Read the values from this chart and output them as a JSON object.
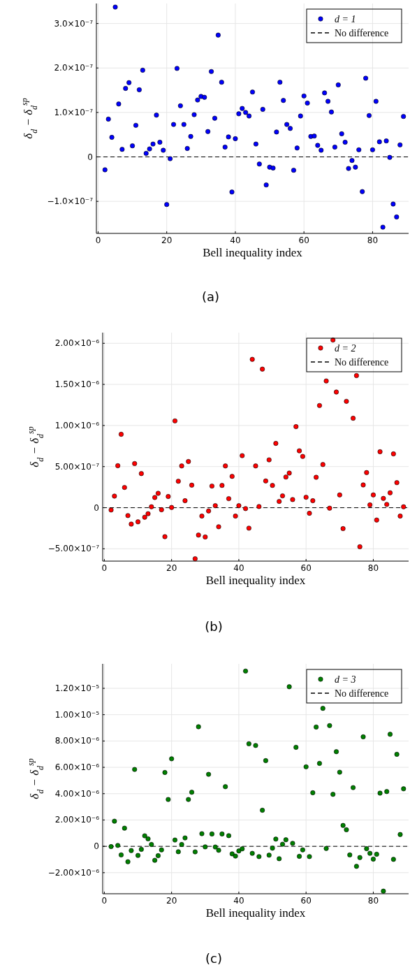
{
  "chart_data": [
    {
      "type": "scatter",
      "xlabel": "Bell inequality index",
      "ylabel": "δ$_{d}$ − δ$_{d}$$^{sp}$",
      "xlim": [
        -0.5,
        90.5
      ],
      "xticks": [
        0,
        20,
        40,
        60,
        80
      ],
      "ylim": [
        -1.72e-07,
        3.45e-07
      ],
      "yticks": [
        {
          "value": -1e-07,
          "label": "−1.0×10⁻⁷"
        },
        {
          "value": 0,
          "label": "0"
        },
        {
          "value": 1e-07,
          "label": "1.0×10⁻⁷"
        },
        {
          "value": 2e-07,
          "label": "2.0×10⁻⁷"
        },
        {
          "value": 3e-07,
          "label": "3.0×10⁻⁷"
        }
      ],
      "grid": true,
      "legend": "top right",
      "marker": "circle",
      "annotations": [
        "(a)"
      ],
      "ref_lines": [
        {
          "axis": "y",
          "value": 0,
          "label": "No difference",
          "line_style": "dashed",
          "color": "#000000"
        }
      ],
      "series": [
        {
          "name": "d = 1",
          "color": "#0000ff",
          "x": [
            2,
            3,
            4,
            5,
            6,
            7,
            8,
            9,
            10,
            11,
            12,
            13,
            14,
            15,
            16,
            17,
            18,
            19,
            20,
            21,
            22,
            23,
            24,
            25,
            26,
            27,
            28,
            29,
            30,
            31,
            32,
            33,
            34,
            35,
            36,
            37,
            38,
            39,
            40,
            41,
            42,
            43,
            44,
            45,
            46,
            47,
            48,
            49,
            50,
            51,
            52,
            53,
            54,
            55,
            56,
            57,
            58,
            59,
            60,
            61,
            62,
            63,
            64,
            65,
            66,
            67,
            68,
            69,
            70,
            71,
            72,
            73,
            74,
            75,
            76,
            77,
            78,
            79,
            80,
            81,
            82,
            83,
            84,
            85,
            86,
            87,
            88,
            89
          ],
          "values": [
            -2.9e-08,
            8.5e-08,
            4.4e-08,
            3.37e-07,
            1.19e-07,
            1.7e-08,
            1.54e-07,
            1.67e-07,
            2.5e-08,
            7.1e-08,
            1.51e-07,
            1.95e-07,
            8e-09,
            1.8e-08,
            2.9e-08,
            9.4e-08,
            3.3e-08,
            1.5e-08,
            -1.07e-07,
            -4e-09,
            7.3e-08,
            1.99e-07,
            1.15e-07,
            7.3e-08,
            1.9e-08,
            4.6e-08,
            9.5e-08,
            1.28e-07,
            1.36e-07,
            1.34e-07,
            5.7e-08,
            1.92e-07,
            8.7e-08,
            2.74e-07,
            1.68e-07,
            2.2e-08,
            4.5e-08,
            -7.9e-08,
            4.1e-08,
            9.7e-08,
            1.09e-07,
            1e-07,
            9.2e-08,
            1.46e-07,
            2.9e-08,
            -1.6e-08,
            1.07e-07,
            -6.3e-08,
            -2.3e-08,
            -2.5e-08,
            5.6e-08,
            1.68e-07,
            1.27e-07,
            7.3e-08,
            6.4e-08,
            -3e-08,
            2e-08,
            9.2e-08,
            1.37e-07,
            1.21e-07,
            4.6e-08,
            4.7e-08,
            2.6e-08,
            1.5e-08,
            1.44e-07,
            1.25e-07,
            1.01e-07,
            2.2e-08,
            1.62e-07,
            5.2e-08,
            3.3e-08,
            -2.6e-08,
            -8e-09,
            -2.3e-08,
            1.6e-08,
            -7.8e-08,
            1.77e-07,
            9.3e-08,
            1.6e-08,
            1.25e-07,
            3.4e-08,
            -1.58e-07,
            3.6e-08,
            -1e-09,
            -1.06e-07,
            -1.35e-07,
            2.7e-08,
            9.1e-08
          ]
        }
      ]
    },
    {
      "type": "scatter",
      "xlabel": "Bell inequality index",
      "ylabel": "δ$_{d}$ − δ$_{d}$$^{sp}$",
      "xlim": [
        -0.5,
        90.5
      ],
      "xticks": [
        0,
        20,
        40,
        60,
        80
      ],
      "ylim": [
        -6.5e-07,
        2.13e-06
      ],
      "yticks": [
        {
          "value": -5e-07,
          "label": "−5.00×10⁻⁷"
        },
        {
          "value": 0,
          "label": "0"
        },
        {
          "value": 5e-07,
          "label": "5.00×10⁻⁷"
        },
        {
          "value": 1e-06,
          "label": "1.00×10⁻⁶"
        },
        {
          "value": 1.5e-06,
          "label": "1.50×10⁻⁶"
        },
        {
          "value": 2e-06,
          "label": "2.00×10⁻⁶"
        }
      ],
      "grid": true,
      "legend": "top right",
      "marker": "circle",
      "annotations": [
        "(b)"
      ],
      "ref_lines": [
        {
          "axis": "y",
          "value": 0,
          "label": "No difference",
          "line_style": "dashed",
          "color": "#000000"
        }
      ],
      "series": [
        {
          "name": "d = 2",
          "color": "#ff0000",
          "x": [
            2,
            3,
            4,
            5,
            6,
            7,
            8,
            9,
            10,
            11,
            12,
            13,
            14,
            15,
            16,
            17,
            18,
            19,
            20,
            21,
            22,
            23,
            24,
            25,
            26,
            27,
            28,
            29,
            30,
            31,
            32,
            33,
            34,
            35,
            36,
            37,
            38,
            39,
            40,
            41,
            42,
            43,
            44,
            45,
            46,
            47,
            48,
            49,
            50,
            51,
            52,
            53,
            54,
            55,
            56,
            57,
            58,
            59,
            60,
            61,
            62,
            63,
            64,
            65,
            66,
            67,
            68,
            69,
            70,
            71,
            72,
            74,
            75,
            76,
            77,
            78,
            79,
            80,
            81,
            82,
            83,
            84,
            85,
            86,
            87,
            88,
            89
          ],
          "values": [
            -2.8e-08,
            1.41e-07,
            5.11e-07,
            8.93e-07,
            2.46e-07,
            -9.6e-08,
            -2e-07,
            5.37e-07,
            -1.72e-07,
            4.15e-07,
            -1.16e-07,
            -7.3e-08,
            1.1e-08,
            1.24e-07,
            1.75e-07,
            -2.5e-08,
            -3.53e-07,
            1.36e-07,
            3e-09,
            1.056e-06,
            3.22e-07,
            5.08e-07,
            8.5e-08,
            5.62e-07,
            2.74e-07,
            -6.21e-07,
            -3.33e-07,
            -1.02e-07,
            -3.56e-07,
            -4e-08,
            2.63e-07,
            2.5e-08,
            -2.32e-07,
            2.71e-07,
            5.08e-07,
            1.1e-07,
            3.81e-07,
            -1.02e-07,
            2.5e-08,
            6.33e-07,
            -1.1e-08,
            -2.49e-07,
            1.805e-06,
            5.08e-07,
            1.4e-08,
            1.686e-06,
            3.25e-07,
            5.82e-07,
            2.71e-07,
            7.82e-07,
            7.6e-08,
            1.44e-07,
            3.73e-07,
            4.21e-07,
            9.9e-08,
            9.86e-07,
            6.92e-07,
            6.24e-07,
            1.27e-07,
            -6.8e-08,
            8.5e-08,
            3.7e-07,
            1.243e-06,
            5.25e-07,
            1.542e-06,
            -6e-09,
            2.04e-06,
            1.407e-06,
            1.55e-07,
            -2.54e-07,
            1.294e-06,
            1.088e-06,
            1.607e-06,
            -4.75e-07,
            2.77e-07,
            4.27e-07,
            3.4e-08,
            1.55e-07,
            -1.5e-07,
            6.81e-07,
            1.13e-07,
            4e-08,
            1.81e-07,
            6.55e-07,
            3.05e-07,
            -1.02e-07,
            1.1e-08
          ]
        }
      ]
    },
    {
      "type": "scatter",
      "xlabel": "Bell inequality index",
      "ylabel": "δ$_{d}$ − δ$_{d}$$^{sp}$",
      "xlim": [
        -0.5,
        90.5
      ],
      "xticks": [
        0,
        20,
        40,
        60,
        80
      ],
      "ylim": [
        -3.6e-06,
        1.386e-05
      ],
      "yticks": [
        {
          "value": -2e-06,
          "label": "−2.00×10⁻⁶"
        },
        {
          "value": 0,
          "label": "0"
        },
        {
          "value": 2e-06,
          "label": "2.00×10⁻⁶"
        },
        {
          "value": 4e-06,
          "label": "4.00×10⁻⁶"
        },
        {
          "value": 6e-06,
          "label": "6.00×10⁻⁶"
        },
        {
          "value": 8e-06,
          "label": "8.00×10⁻⁶"
        },
        {
          "value": 1e-05,
          "label": "1.00×10⁻⁵"
        },
        {
          "value": 1.2e-05,
          "label": "1.20×10⁻⁵"
        }
      ],
      "grid": true,
      "legend": "top right",
      "marker": "circle",
      "annotations": [
        "(c)"
      ],
      "ref_lines": [
        {
          "axis": "y",
          "value": 0,
          "label": "No difference",
          "line_style": "dashed",
          "color": "#000000"
        }
      ],
      "series": [
        {
          "name": "d = 3",
          "color": "#008000",
          "x": [
            2,
            3,
            4,
            5,
            6,
            7,
            8,
            9,
            10,
            11,
            12,
            13,
            14,
            15,
            16,
            17,
            18,
            19,
            20,
            21,
            22,
            23,
            24,
            25,
            26,
            27,
            28,
            29,
            30,
            31,
            32,
            33,
            34,
            35,
            36,
            37,
            38,
            39,
            40,
            41,
            42,
            43,
            44,
            45,
            46,
            47,
            48,
            49,
            50,
            51,
            52,
            53,
            54,
            55,
            56,
            57,
            58,
            59,
            60,
            61,
            62,
            63,
            64,
            65,
            66,
            67,
            68,
            69,
            70,
            71,
            72,
            73,
            74,
            75,
            76,
            77,
            78,
            79,
            80,
            81,
            82,
            83,
            84,
            85,
            86,
            87,
            88,
            89
          ],
          "values": [
            -2e-08,
            1.91e-06,
            7e-08,
            -6.5e-07,
            1.38e-06,
            -1.17e-06,
            -3.2e-07,
            5.84e-06,
            -6.9e-07,
            -2.3e-07,
            8e-07,
            5.7e-07,
            1.4e-07,
            -1.06e-06,
            -7.1e-07,
            -2.7e-07,
            5.61e-06,
            3.56e-06,
            6.65e-06,
            4.8e-07,
            -4.1e-07,
            1.4e-07,
            6.4e-07,
            3.56e-06,
            4.11e-06,
            -4.2e-07,
            9.08e-06,
            9.6e-07,
            -4e-08,
            5.47e-06,
            9.4e-07,
            -5e-08,
            -3e-07,
            9.4e-07,
            4.53e-06,
            8.1e-07,
            -5.7e-07,
            -7.4e-07,
            -3.5e-07,
            -1.9e-07,
            1.331e-05,
            7.79e-06,
            -5.3e-07,
            7.66e-06,
            -7.8e-07,
            2.74e-06,
            6.51e-06,
            -6.7e-07,
            -1.4e-07,
            5.5e-07,
            -9.4e-07,
            1.6e-07,
            5e-07,
            1.212e-05,
            2.3e-07,
            7.52e-06,
            -7.6e-07,
            -2.7e-07,
            6.04e-06,
            -7.8e-07,
            4.07e-06,
            9.06e-06,
            6.3e-06,
            1.048e-05,
            -1.6e-07,
            9.17e-06,
            3.95e-06,
            7.19e-06,
            5.63e-06,
            1.59e-06,
            1.26e-06,
            -6.5e-07,
            4.46e-06,
            -1.52e-06,
            -8.5e-07,
            8.32e-06,
            -1.8e-07,
            -5.3e-07,
            -9.7e-07,
            -6e-07,
            4.04e-06,
            -3.4e-06,
            4.16e-06,
            8.51e-06,
            -9.9e-07,
            6.99e-06,
            9e-07,
            4.37e-06
          ]
        }
      ]
    }
  ]
}
